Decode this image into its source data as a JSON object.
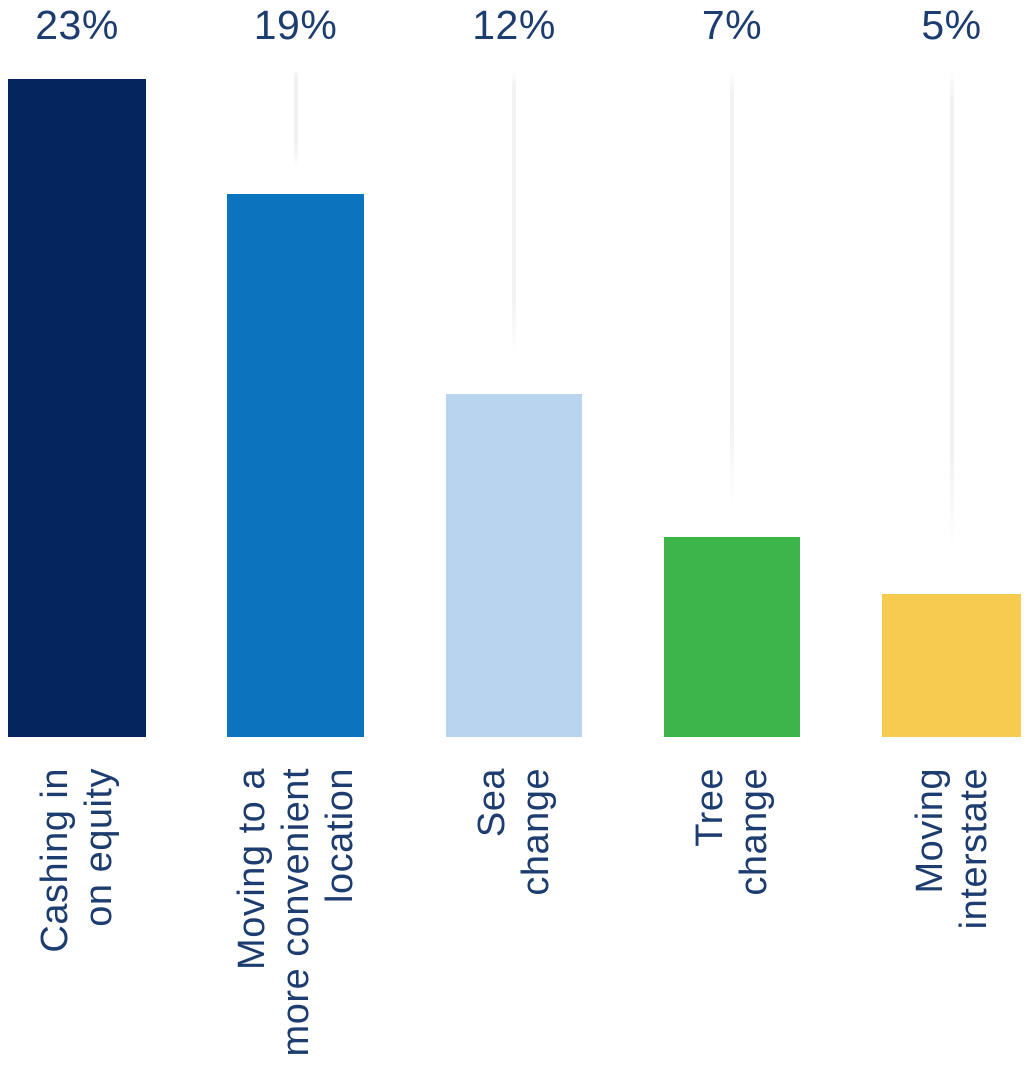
{
  "chart_data": {
    "type": "bar",
    "title": "",
    "xlabel": "",
    "ylabel": "",
    "unit": "%",
    "ylim": [
      0,
      25
    ],
    "legend": "none",
    "grid": "faint vertical drop lines above bar tops",
    "background_color": "#ffffff",
    "label_color": "#1d3c70",
    "gridline_color": "#f2f2f2",
    "categories": [
      "Cashing in on equity",
      "Moving to a more convenient location",
      "Sea change",
      "Tree change",
      "Moving interstate"
    ],
    "values": [
      23,
      19,
      12,
      7,
      5
    ],
    "value_labels": [
      "23%",
      "19%",
      "12%",
      "7%",
      "5%"
    ],
    "bar_colors": [
      "#04255e",
      "#0b74be",
      "#b8d4ee",
      "#3eb54b",
      "#f5cc50"
    ],
    "bars": [
      {
        "value": 23,
        "value_label": "23%",
        "color": "#04255e",
        "label_lines": [
          "Cashing in",
          "on equity"
        ]
      },
      {
        "value": 19,
        "value_label": "19%",
        "color": "#0b74be",
        "label_lines": [
          "Moving to a",
          "more convenient",
          "location"
        ]
      },
      {
        "value": 12,
        "value_label": "12%",
        "color": "#b8d4ee",
        "label_lines": [
          "Sea",
          "change"
        ]
      },
      {
        "value": 7,
        "value_label": "7%",
        "color": "#3eb54b",
        "label_lines": [
          "Tree",
          "change"
        ]
      },
      {
        "value": 5,
        "value_label": "5%",
        "color": "#f5cc50",
        "label_lines": [
          "Moving",
          "interstate"
        ]
      }
    ]
  }
}
